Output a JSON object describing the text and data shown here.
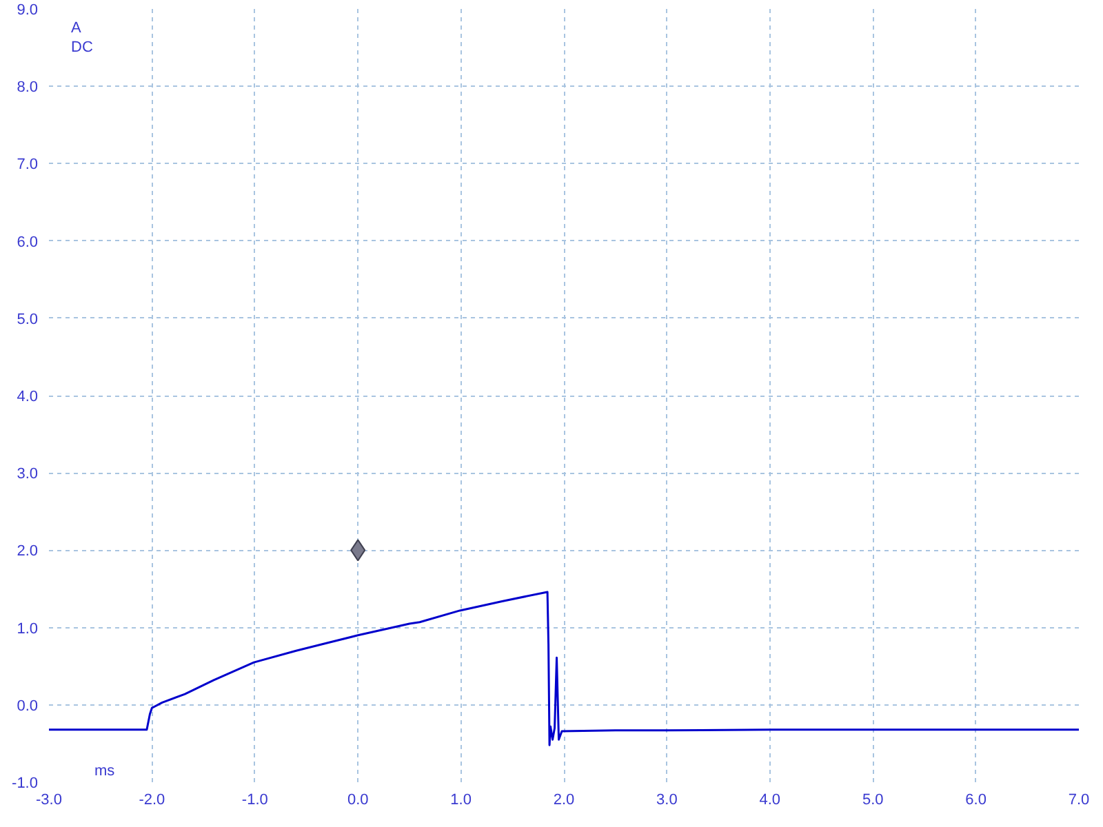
{
  "chart_data": {
    "type": "line",
    "xlabel": "ms",
    "ylabel": "A\nDC",
    "xlim": [
      -3,
      7
    ],
    "ylim": [
      -1,
      9
    ],
    "xticks": [
      {
        "value": -3,
        "label": "-3.0"
      },
      {
        "value": -2,
        "label": "-2.0"
      },
      {
        "value": -1,
        "label": "-1.0"
      },
      {
        "value": 0,
        "label": "0.0"
      },
      {
        "value": 1,
        "label": "1.0"
      },
      {
        "value": 2,
        "label": "2.0"
      },
      {
        "value": 3,
        "label": "3.0"
      },
      {
        "value": 4,
        "label": "4.0"
      },
      {
        "value": 5,
        "label": "5.0"
      },
      {
        "value": 6,
        "label": "6.0"
      },
      {
        "value": 7,
        "label": "7.0"
      }
    ],
    "yticks": [
      {
        "value": -1,
        "label": "-1.0"
      },
      {
        "value": 0,
        "label": "0.0"
      },
      {
        "value": 1,
        "label": "1.0"
      },
      {
        "value": 2,
        "label": "2.0"
      },
      {
        "value": 3,
        "label": "3.0"
      },
      {
        "value": 4,
        "label": "4.0"
      },
      {
        "value": 5,
        "label": "5.0"
      },
      {
        "value": 6,
        "label": "6.0"
      },
      {
        "value": 7,
        "label": "7.0"
      },
      {
        "value": 8,
        "label": "8.0"
      },
      {
        "value": 9,
        "label": "9.0"
      }
    ],
    "grid": true,
    "line_style": "solid",
    "marker": "none",
    "series": [
      {
        "color": "#0000cc",
        "x": [
          -3.0,
          -2.5,
          -2.1,
          -2.05,
          -2.02,
          -2.0,
          -1.9,
          -1.68,
          -1.4,
          -1.01,
          -0.6,
          -0.3,
          0.0,
          0.3,
          0.5,
          0.6,
          0.99,
          1.4,
          1.84,
          1.85,
          1.86,
          1.87,
          1.89,
          1.91,
          1.93,
          1.95,
          1.98,
          2.5,
          3.0,
          4.0,
          5.0,
          6.0,
          7.0
        ],
        "values": [
          -0.32,
          -0.32,
          -0.32,
          -0.32,
          -0.12,
          -0.04,
          0.03,
          0.14,
          0.32,
          0.55,
          0.7,
          0.8,
          0.9,
          0.99,
          1.05,
          1.07,
          1.22,
          1.34,
          1.46,
          0.79,
          -0.52,
          -0.28,
          -0.45,
          -0.3,
          0.61,
          -0.45,
          -0.34,
          -0.33,
          -0.33,
          -0.32,
          -0.32,
          -0.32,
          -0.32
        ]
      },
      {
        "type": "scatter",
        "color": "#7a7a8c",
        "marker": "diamond",
        "x": [
          0.0
        ],
        "values": [
          2.0
        ]
      }
    ]
  }
}
